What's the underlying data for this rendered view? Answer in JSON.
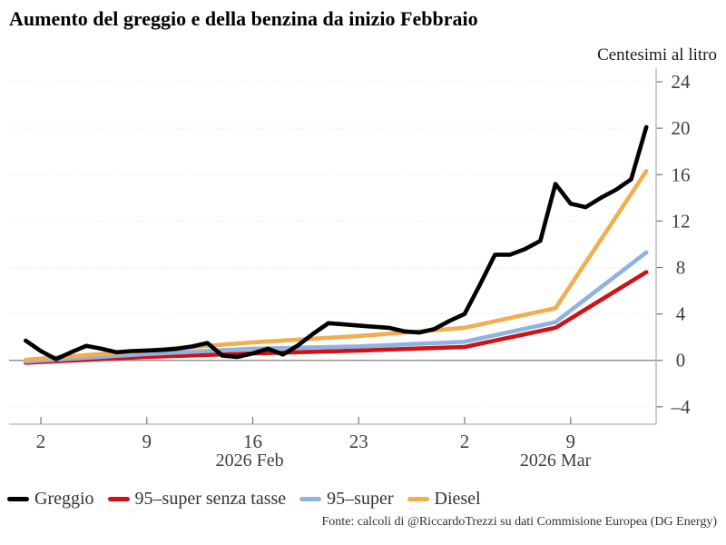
{
  "title": "Aumento del greggio e della benzina da inizio Febbraio",
  "y_axis_title": "Centesimi al litro",
  "footer": "Fonte: calcoli di @RiccardoTrezzi su dati Commisione Europea (DG Energy)",
  "colors": {
    "greggio": "#000000",
    "super_senza_tasse": "#d01217",
    "super": "#8fb3e0",
    "diesel": "#f0ae4e",
    "zero_line": "#808080",
    "axis_line": "#b3b3b3",
    "tick_mark": "#777777",
    "gridline": "#dcdcdc"
  },
  "chart_data": {
    "type": "line",
    "title": "Aumento del greggio e della benzina da inizio Febbraio",
    "ylabel": "Centesimi al litro",
    "x_description": "days since 2026-02-01 (x=0 is Feb 1, x=29 is Mar 2)",
    "xlim": [
      -1.1,
      41.65
    ],
    "ylim": [
      -5.5,
      25.1
    ],
    "grid": "dotted horizontal at each y tick, solid line at 0",
    "legend_position": "bottom-left",
    "x_ticks": [
      {
        "x": 1,
        "label": "2"
      },
      {
        "x": 8,
        "label": "9"
      },
      {
        "x": 15,
        "label": "16"
      },
      {
        "x": 22,
        "label": "23"
      },
      {
        "x": 29,
        "label": "2"
      },
      {
        "x": 36,
        "label": "9"
      }
    ],
    "x_month_labels": [
      {
        "x": 14.8,
        "label": "2026 Feb"
      },
      {
        "x": 35.0,
        "label": "2026 Mar"
      }
    ],
    "y_ticks": [
      {
        "v": -4,
        "label": "–4"
      },
      {
        "v": 0,
        "label": "0"
      },
      {
        "v": 4,
        "label": "4"
      },
      {
        "v": 8,
        "label": "8"
      },
      {
        "v": 12,
        "label": "12"
      },
      {
        "v": 16,
        "label": "16"
      },
      {
        "v": 20,
        "label": "20"
      },
      {
        "v": 24,
        "label": "24"
      }
    ],
    "series": [
      {
        "name": "Greggio",
        "color": "#000000",
        "points": [
          [
            0,
            1.7
          ],
          [
            1,
            0.8
          ],
          [
            2,
            0.1
          ],
          [
            3,
            0.7
          ],
          [
            4,
            1.25
          ],
          [
            5,
            1.0
          ],
          [
            6,
            0.7
          ],
          [
            7,
            0.8
          ],
          [
            8,
            0.85
          ],
          [
            9,
            0.9
          ],
          [
            10,
            1.0
          ],
          [
            11,
            1.2
          ],
          [
            12,
            1.5
          ],
          [
            13,
            0.4
          ],
          [
            14,
            0.3
          ],
          [
            15,
            0.6
          ],
          [
            16,
            1.0
          ],
          [
            17,
            0.5
          ],
          [
            18,
            1.3
          ],
          [
            19,
            2.3
          ],
          [
            20,
            3.2
          ],
          [
            21,
            3.1
          ],
          [
            22,
            3.0
          ],
          [
            23,
            2.9
          ],
          [
            24,
            2.8
          ],
          [
            25,
            2.5
          ],
          [
            26,
            2.4
          ],
          [
            27,
            2.7
          ],
          [
            28,
            3.4
          ],
          [
            29,
            4.0
          ],
          [
            30,
            6.5
          ],
          [
            31,
            9.1
          ],
          [
            32,
            9.1
          ],
          [
            33,
            9.6
          ],
          [
            34,
            10.3
          ],
          [
            35,
            15.2
          ],
          [
            36,
            13.5
          ],
          [
            37,
            13.2
          ],
          [
            38,
            14.0
          ],
          [
            39,
            14.7
          ],
          [
            40,
            15.6
          ],
          [
            41,
            20.1
          ]
        ]
      },
      {
        "name": "95–super senza tasse",
        "color": "#d01217",
        "points": [
          [
            0,
            -0.2
          ],
          [
            8,
            0.3
          ],
          [
            15,
            0.6
          ],
          [
            22,
            0.85
          ],
          [
            29,
            1.15
          ],
          [
            35,
            2.8
          ],
          [
            41,
            7.6
          ]
        ]
      },
      {
        "name": "95–super",
        "color": "#8fb3e0",
        "points": [
          [
            0,
            -0.1
          ],
          [
            8,
            0.55
          ],
          [
            15,
            1.0
          ],
          [
            22,
            1.2
          ],
          [
            29,
            1.6
          ],
          [
            35,
            3.3
          ],
          [
            41,
            9.3
          ]
        ]
      },
      {
        "name": "Diesel",
        "color": "#f0ae4e",
        "points": [
          [
            0,
            0.05
          ],
          [
            8,
            0.85
          ],
          [
            15,
            1.55
          ],
          [
            22,
            2.1
          ],
          [
            29,
            2.8
          ],
          [
            35,
            4.5
          ],
          [
            41,
            16.3
          ]
        ]
      }
    ]
  }
}
